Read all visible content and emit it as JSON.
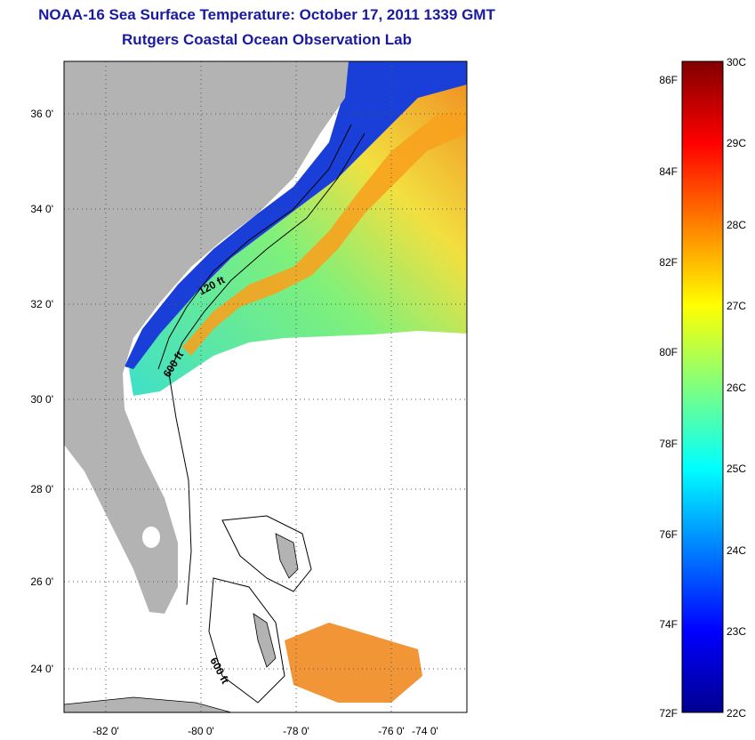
{
  "title": "NOAA-16 Sea Surface Temperature:  October 17, 2011 1339 GMT",
  "subtitle": "Rutgers Coastal Ocean Observation Lab",
  "map": {
    "lat_labels": [
      "36 0'",
      "34 0'",
      "32 0'",
      "30 0'",
      "28 0'",
      "26 0'",
      "24 0'"
    ],
    "lon_labels": [
      "-82 0'",
      "-80 0'",
      "-78 0'",
      "-76 0'",
      "-74 0'"
    ],
    "contour_labels": [
      "120 ft",
      "600 ft",
      "600 ft"
    ],
    "colors": {
      "land": "#b3b3b3",
      "cloud": "#ffffff"
    }
  },
  "colorbar": {
    "fahrenheit": [
      "86F",
      "84F",
      "82F",
      "80F",
      "78F",
      "76F",
      "74F",
      "72F"
    ],
    "celsius": [
      "30C",
      "29C",
      "28C",
      "27C",
      "26C",
      "25C",
      "24C",
      "23C",
      "22C"
    ],
    "range_c": [
      22,
      30
    ],
    "range_f": [
      72,
      86
    ],
    "palette": "jet"
  }
}
